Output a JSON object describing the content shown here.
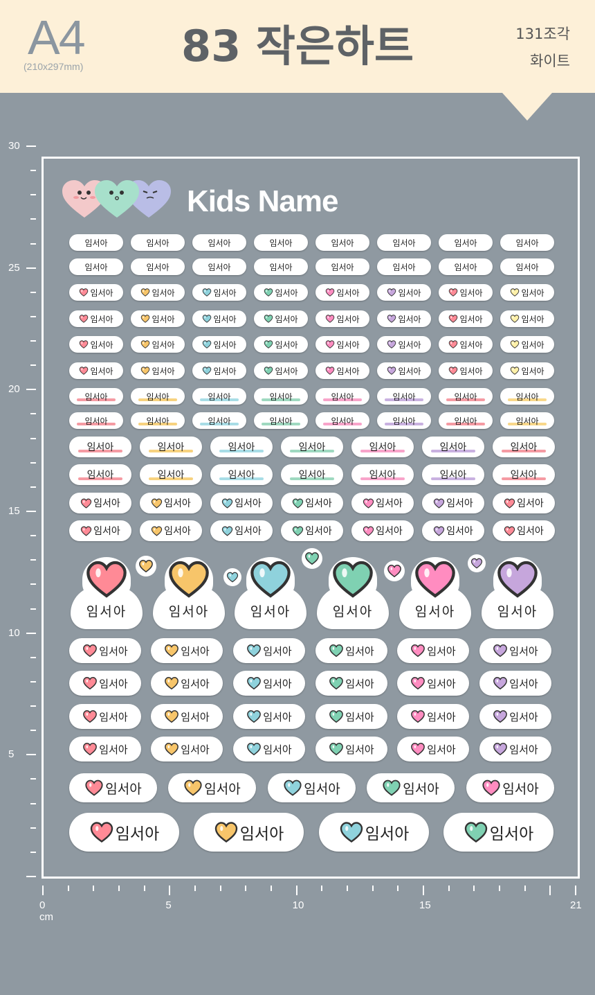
{
  "header": {
    "paper_size": "A4",
    "paper_dims": "(210x297mm)",
    "title": "83 작은하트",
    "pieces": "131조각",
    "color": "화이트"
  },
  "sheet": {
    "title": "Kids Name",
    "name": "임서아"
  },
  "ruler": {
    "vertical_labels": [
      "30",
      "25",
      "20",
      "15",
      "10",
      "5"
    ],
    "horizontal_labels": [
      "0 cm",
      "5",
      "10",
      "15",
      "21"
    ]
  },
  "colors": {
    "background": "#8f99a1",
    "header_bg": "#fdf0d8",
    "heart_palette": [
      "#ff8a96",
      "#f7c56a",
      "#8fd2dc",
      "#7fd1b2",
      "#ff8cc0",
      "#c6a6dc",
      "#fff0a8"
    ]
  }
}
